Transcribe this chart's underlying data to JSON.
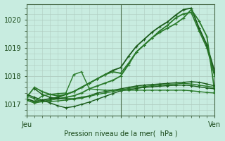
{
  "background_color": "#c8ece0",
  "grid_color": "#b0ccc0",
  "xlabel": "Pression niveau de la mer(  hPa )",
  "ylim": [
    1016.6,
    1020.55
  ],
  "xlim": [
    0,
    48
  ],
  "xtick_positions": [
    0,
    24,
    48
  ],
  "xtick_labels": [
    "Jeu",
    "",
    "Ven"
  ],
  "ytick_positions": [
    1017,
    1018,
    1019,
    1020
  ],
  "series": [
    {
      "x": [
        0,
        2,
        4,
        6,
        8,
        10,
        12,
        14,
        16,
        18,
        20,
        22,
        24,
        26,
        28,
        30,
        32,
        34,
        36,
        38,
        40,
        42,
        44,
        46,
        48
      ],
      "y": [
        1017.15,
        1017.05,
        1017.1,
        1017.15,
        1017.2,
        1017.25,
        1017.3,
        1017.4,
        1017.55,
        1017.65,
        1017.75,
        1017.85,
        1018.0,
        1018.4,
        1018.85,
        1019.1,
        1019.35,
        1019.6,
        1019.8,
        1020.05,
        1020.2,
        1020.25,
        1019.6,
        1019.0,
        1018.0
      ],
      "color": "#2a7a2a",
      "lw": 1.3,
      "marker": "+"
    },
    {
      "x": [
        0,
        2,
        4,
        6,
        8,
        10,
        12,
        14,
        16,
        18,
        20,
        22,
        24,
        26,
        28,
        30,
        32,
        34,
        36,
        38,
        40,
        42,
        44,
        46,
        48
      ],
      "y": [
        1017.2,
        1017.1,
        1017.15,
        1017.2,
        1017.25,
        1017.35,
        1017.45,
        1017.6,
        1017.75,
        1017.9,
        1018.05,
        1018.2,
        1018.3,
        1018.7,
        1019.05,
        1019.3,
        1019.55,
        1019.75,
        1019.92,
        1020.15,
        1020.35,
        1020.4,
        1019.7,
        1019.1,
        1018.15
      ],
      "color": "#1a5c1a",
      "lw": 1.3,
      "marker": "+"
    },
    {
      "x": [
        0,
        2,
        4,
        6,
        8,
        10,
        12,
        14,
        16,
        18,
        20,
        22,
        24,
        26,
        28,
        30,
        32,
        34,
        36,
        38,
        40,
        42,
        44,
        46,
        48
      ],
      "y": [
        1017.25,
        1017.6,
        1017.45,
        1017.35,
        1017.3,
        1017.35,
        1017.45,
        1017.6,
        1017.75,
        1017.9,
        1018.05,
        1018.15,
        1018.1,
        1018.45,
        1018.85,
        1019.1,
        1019.35,
        1019.55,
        1019.7,
        1019.85,
        1020.05,
        1020.35,
        1019.95,
        1019.4,
        1017.45
      ],
      "color": "#2a7a2a",
      "lw": 1.3,
      "marker": "+"
    },
    {
      "x": [
        2,
        4,
        6,
        8,
        10,
        12,
        14,
        16,
        18,
        20,
        22,
        24,
        26,
        28,
        30,
        32,
        34,
        36,
        38,
        40,
        42,
        44,
        46,
        48
      ],
      "y": [
        1017.55,
        1017.35,
        1017.25,
        1017.2,
        1017.2,
        1017.2,
        1017.25,
        1017.3,
        1017.4,
        1017.45,
        1017.5,
        1017.55,
        1017.6,
        1017.65,
        1017.68,
        1017.7,
        1017.72,
        1017.74,
        1017.76,
        1017.78,
        1017.8,
        1017.78,
        1017.72,
        1017.65
      ],
      "color": "#1a5c1a",
      "lw": 1.0,
      "marker": "+"
    },
    {
      "x": [
        0,
        2,
        4,
        6,
        8,
        10,
        12,
        14,
        16,
        18,
        20,
        22,
        24,
        26,
        28,
        30,
        32,
        34,
        36,
        38,
        40,
        42,
        44,
        46,
        48
      ],
      "y": [
        1017.3,
        1017.2,
        1017.1,
        1017.1,
        1017.12,
        1017.15,
        1017.18,
        1017.22,
        1017.28,
        1017.35,
        1017.4,
        1017.45,
        1017.52,
        1017.56,
        1017.6,
        1017.63,
        1017.66,
        1017.68,
        1017.7,
        1017.72,
        1017.74,
        1017.72,
        1017.68,
        1017.64,
        1017.6
      ],
      "color": "#2a7a2a",
      "lw": 1.0,
      "marker": "+"
    },
    {
      "x": [
        0,
        2,
        4,
        6,
        8,
        10,
        12,
        14,
        16,
        18,
        20,
        22,
        24,
        26,
        28,
        30,
        32,
        34,
        36,
        38,
        40,
        42,
        44,
        46,
        48
      ],
      "y": [
        1017.35,
        1017.25,
        1017.15,
        1017.05,
        1016.95,
        1016.88,
        1016.92,
        1017.0,
        1017.08,
        1017.18,
        1017.28,
        1017.38,
        1017.48,
        1017.52,
        1017.56,
        1017.6,
        1017.62,
        1017.64,
        1017.66,
        1017.67,
        1017.68,
        1017.66,
        1017.62,
        1017.58,
        1017.55
      ],
      "color": "#1a5c1a",
      "lw": 1.0,
      "marker": "+"
    },
    {
      "x": [
        2,
        4,
        6,
        8,
        10,
        12,
        14,
        16,
        18,
        20,
        22,
        24,
        26,
        28,
        30,
        32,
        34,
        36,
        38,
        40,
        42,
        44,
        46,
        48
      ],
      "y": [
        1017.1,
        1017.3,
        1017.35,
        1017.38,
        1017.4,
        1018.05,
        1018.15,
        1017.55,
        1017.52,
        1017.5,
        1017.5,
        1017.5,
        1017.5,
        1017.5,
        1017.5,
        1017.5,
        1017.5,
        1017.5,
        1017.5,
        1017.5,
        1017.48,
        1017.45,
        1017.42,
        1017.4
      ],
      "color": "#2a7a2a",
      "lw": 1.0,
      "marker": "+"
    }
  ],
  "vline_x": 24,
  "vline_color": "#557755"
}
